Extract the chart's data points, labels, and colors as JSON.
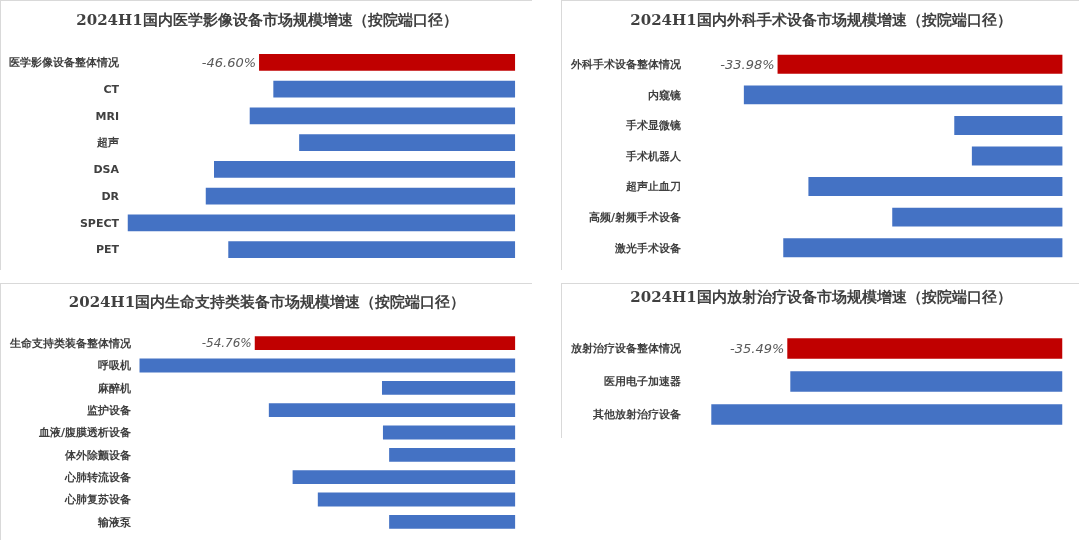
{
  "chart_data": [
    {
      "type": "bar",
      "orientation": "horizontal",
      "title": "2024H1国内医学影像设备市场规模增速（按院端口径）",
      "categories": [
        "医学影像设备整体情况",
        "CT",
        "MRI",
        "超声",
        "DSA",
        "DR",
        "SPECT",
        "PET"
      ],
      "values": [
        -46.6,
        -44.0,
        -48.3,
        -39.3,
        -54.8,
        -56.3,
        -70.5,
        -52.2
      ],
      "colors": [
        "#c00000",
        "#4472c4",
        "#4472c4",
        "#4472c4",
        "#4472c4",
        "#4472c4",
        "#4472c4",
        "#4472c4"
      ],
      "value_labels": [
        "-46.60%",
        null,
        null,
        null,
        null,
        null,
        null,
        null
      ],
      "tick_labels": "y"
    },
    {
      "type": "bar",
      "orientation": "horizontal",
      "title": "2024H1国内外科手术设备市场规模增速（按院端口径）",
      "categories": [
        "外科手术设备整体情况",
        "内窥镜",
        "手术显微镜",
        "手术机器人",
        "超声止血刀",
        "高频/射频手术设备",
        "激光手术设备"
      ],
      "values": [
        -33.98,
        -38.0,
        -12.9,
        -10.8,
        -30.3,
        -20.3,
        -33.3
      ],
      "colors": [
        "#c00000",
        "#4472c4",
        "#4472c4",
        "#4472c4",
        "#4472c4",
        "#4472c4",
        "#4472c4"
      ],
      "value_labels": [
        "-33.98%",
        null,
        null,
        null,
        null,
        null,
        null
      ],
      "tick_labels": "y"
    },
    {
      "type": "bar",
      "orientation": "horizontal",
      "title": "2024H1国内生命支持类装备市场规模增速（按院端口径）",
      "categories": [
        "生命支持类装备整体情况",
        "呼吸机",
        "麻醉机",
        "监护设备",
        "血液/腹膜透析设备",
        "体外除颤设备",
        "心肺转流设备",
        "心肺复苏设备",
        "输液泵"
      ],
      "values": [
        -54.76,
        -79.0,
        -28.0,
        -51.8,
        -27.8,
        -26.5,
        -46.8,
        -41.5,
        -26.5
      ],
      "colors": [
        "#c00000",
        "#4472c4",
        "#4472c4",
        "#4472c4",
        "#4472c4",
        "#4472c4",
        "#4472c4",
        "#4472c4",
        "#4472c4"
      ],
      "value_labels": [
        "-54.76%",
        null,
        null,
        null,
        null,
        null,
        null,
        null,
        null
      ],
      "tick_labels": "y"
    },
    {
      "type": "bar",
      "orientation": "horizontal",
      "title": "2024H1国内放射治疗设备市场规模增速（按院端口径）",
      "categories": [
        "放射治疗设备整体情况",
        "医用电子加速器",
        "其他放射治疗设备"
      ],
      "values": [
        -35.49,
        -35.1,
        -45.3
      ],
      "colors": [
        "#c00000",
        "#4472c4",
        "#4472c4"
      ],
      "value_labels": [
        "-35.49%",
        null,
        null
      ],
      "tick_labels": "y"
    }
  ]
}
